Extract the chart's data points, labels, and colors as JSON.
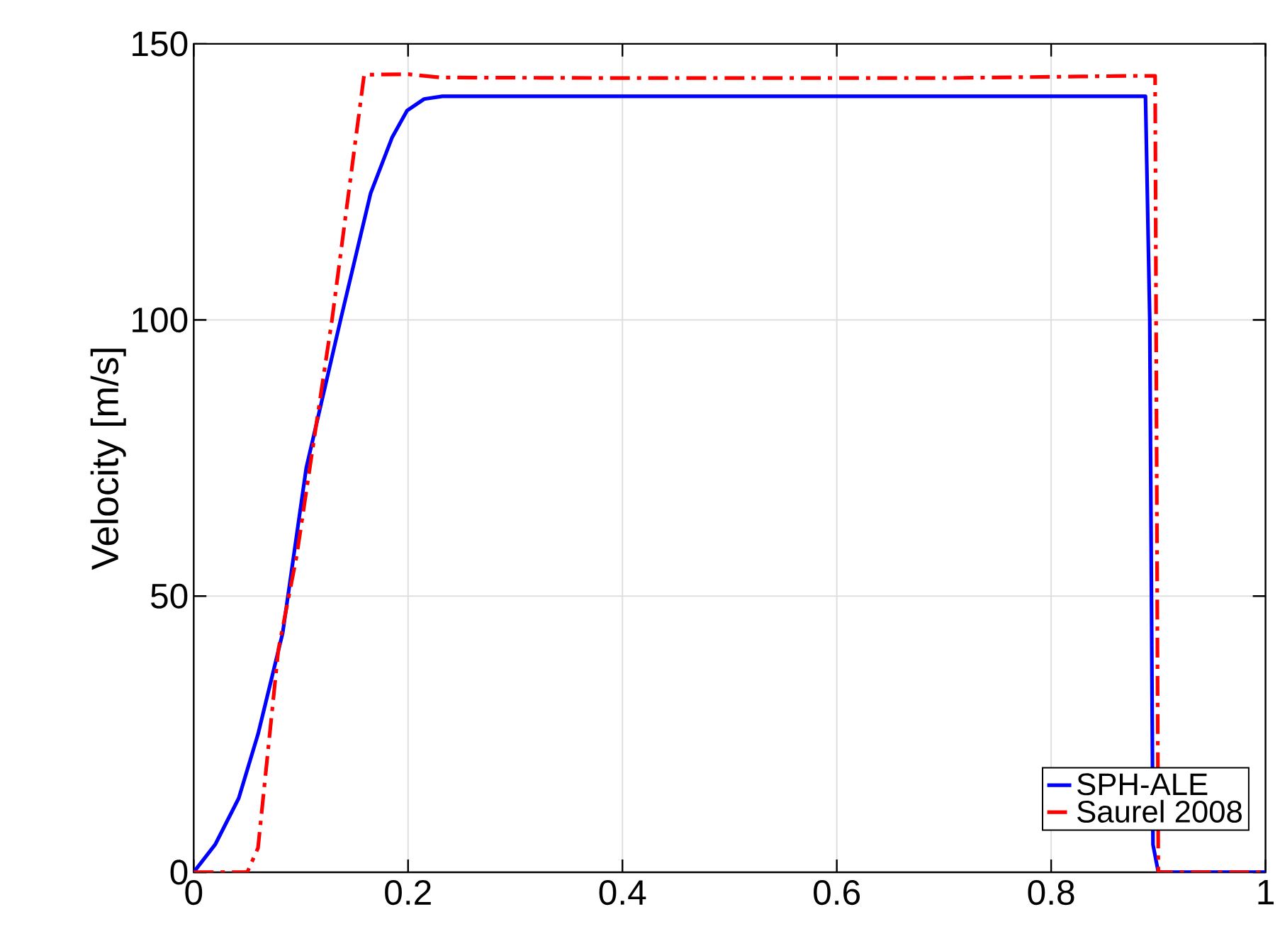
{
  "chart_data": {
    "type": "line",
    "ylabel": "Velocity [m/s]",
    "xlim": [
      0,
      1
    ],
    "ylim": [
      0,
      150
    ],
    "xticks": [
      0,
      0.2,
      0.4,
      0.6,
      0.8,
      1
    ],
    "yticks": [
      0,
      50,
      100,
      150
    ],
    "grid": true,
    "legend": "bottom right",
    "series": [
      {
        "name": "SPH-ALE",
        "color": "#0000ff",
        "line_style": "solid",
        "x": [
          0,
          0.02,
          0.042,
          0.06,
          0.083,
          0.105,
          0.137,
          0.165,
          0.185,
          0.199,
          0.215,
          0.232,
          0.3,
          0.5,
          0.7,
          0.888,
          0.892,
          0.895,
          0.9,
          1
        ],
        "values": [
          0,
          5,
          13.4,
          25,
          43.3,
          73.2,
          100,
          122.9,
          133,
          137.9,
          140,
          140.5,
          140.5,
          140.5,
          140.5,
          140.5,
          100,
          5,
          0,
          0
        ]
      },
      {
        "name": "Saurel 2008",
        "color": "#ff0000",
        "line_style": "dashdot",
        "x": [
          0,
          0.05,
          0.06,
          0.079,
          0.096,
          0.122,
          0.129,
          0.159,
          0.2,
          0.23,
          0.4,
          0.7,
          0.88,
          0.897,
          0.9,
          1
        ],
        "values": [
          0,
          0,
          4.4,
          40.3,
          57.2,
          91,
          100,
          144.4,
          144.5,
          143.9,
          143.8,
          143.8,
          144.2,
          144.2,
          0,
          0
        ]
      }
    ]
  }
}
